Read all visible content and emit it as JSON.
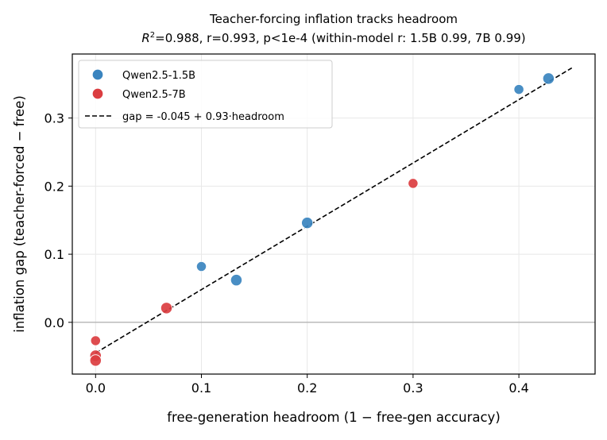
{
  "chart_data": {
    "type": "scatter",
    "title": "Teacher-forcing inflation tracks headroom",
    "subtitle_prefix": "R",
    "subtitle_sup": "2",
    "subtitle_rest": "=0.988, r=0.993, p<1e-4 (within-model r: 1.5B 0.99, 7B 0.99)",
    "xlabel": "free-generation headroom  (1 − free-gen accuracy)",
    "ylabel": "inflation gap  (teacher-forced − free)",
    "xlim": [
      -0.022,
      0.472
    ],
    "ylim": [
      -0.076,
      0.394
    ],
    "xticks": [
      0.0,
      0.1,
      0.2,
      0.3,
      0.4
    ],
    "xtick_labels": [
      "0.0",
      "0.1",
      "0.2",
      "0.3",
      "0.4"
    ],
    "yticks": [
      0.0,
      0.1,
      0.2,
      0.3
    ],
    "ytick_labels": [
      "0.0",
      "0.1",
      "0.2",
      "0.3"
    ],
    "grid": true,
    "zero_line": true,
    "legend_position": "top-left",
    "series": [
      {
        "name": "Qwen2.5-1.5B",
        "color": "#3a84bf",
        "points": [
          {
            "x": 0.1,
            "y": 0.082,
            "size": "small"
          },
          {
            "x": 0.133,
            "y": 0.062,
            "size": "large"
          },
          {
            "x": 0.2,
            "y": 0.146,
            "size": "large"
          },
          {
            "x": 0.4,
            "y": 0.342,
            "size": "small"
          },
          {
            "x": 0.428,
            "y": 0.358,
            "size": "large"
          }
        ]
      },
      {
        "name": "Qwen2.5-7B",
        "color": "#db3d40",
        "points": [
          {
            "x": 0.0,
            "y": -0.027,
            "size": "small"
          },
          {
            "x": 0.0,
            "y": -0.049,
            "size": "large"
          },
          {
            "x": 0.0,
            "y": -0.056,
            "size": "large"
          },
          {
            "x": 0.067,
            "y": 0.021,
            "size": "large"
          },
          {
            "x": 0.3,
            "y": 0.204,
            "size": "small"
          }
        ]
      }
    ],
    "fit_line": {
      "name": "gap = -0.045 + 0.93·headroom",
      "intercept": -0.045,
      "slope": 0.93,
      "x_range": [
        0.0,
        0.45
      ],
      "color": "#000000",
      "style": "dashed"
    }
  }
}
